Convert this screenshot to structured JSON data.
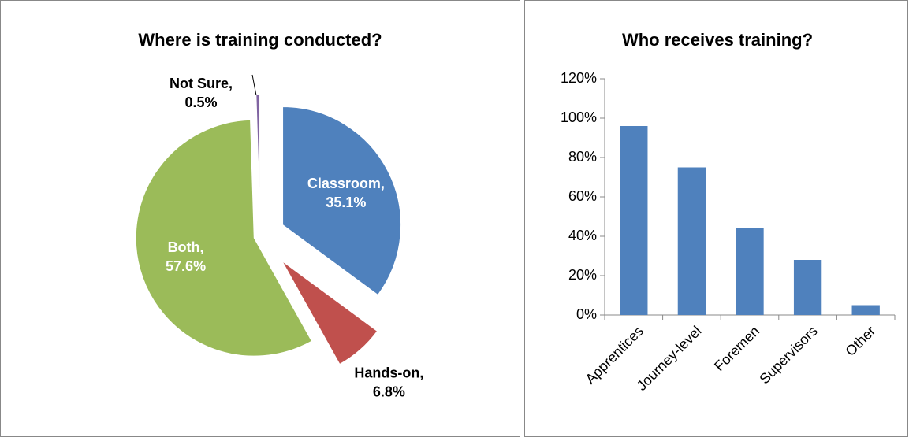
{
  "chart_data": [
    {
      "type": "pie",
      "title": "Where is training conducted?",
      "values": [
        35.1,
        6.8,
        57.6,
        0.5
      ],
      "value_labels": [
        "Classroom, 35.1%",
        "Hands-on, 6.8%",
        "Both, 57.6%",
        "Not Sure, 0.5%"
      ],
      "colors": [
        "#4f81bd",
        "#c0504d",
        "#9bbb59",
        "#8064a2"
      ]
    },
    {
      "type": "bar",
      "title": "Who receives training?",
      "categories": [
        "Apprentices",
        "Journey-level",
        "Foremen",
        "Supervisors",
        "Other"
      ],
      "values": [
        96,
        75,
        44,
        28,
        5
      ],
      "color": "#4f81bd",
      "ylim": [
        0,
        120
      ],
      "yticks": [
        {
          "value": 0,
          "label": "0%"
        },
        {
          "value": 20,
          "label": "20%"
        },
        {
          "value": 40,
          "label": "40%"
        },
        {
          "value": 60,
          "label": "60%"
        },
        {
          "value": 80,
          "label": "80%"
        },
        {
          "value": 100,
          "label": "100%"
        },
        {
          "value": 120,
          "label": "120%"
        }
      ],
      "grid": false
    }
  ]
}
